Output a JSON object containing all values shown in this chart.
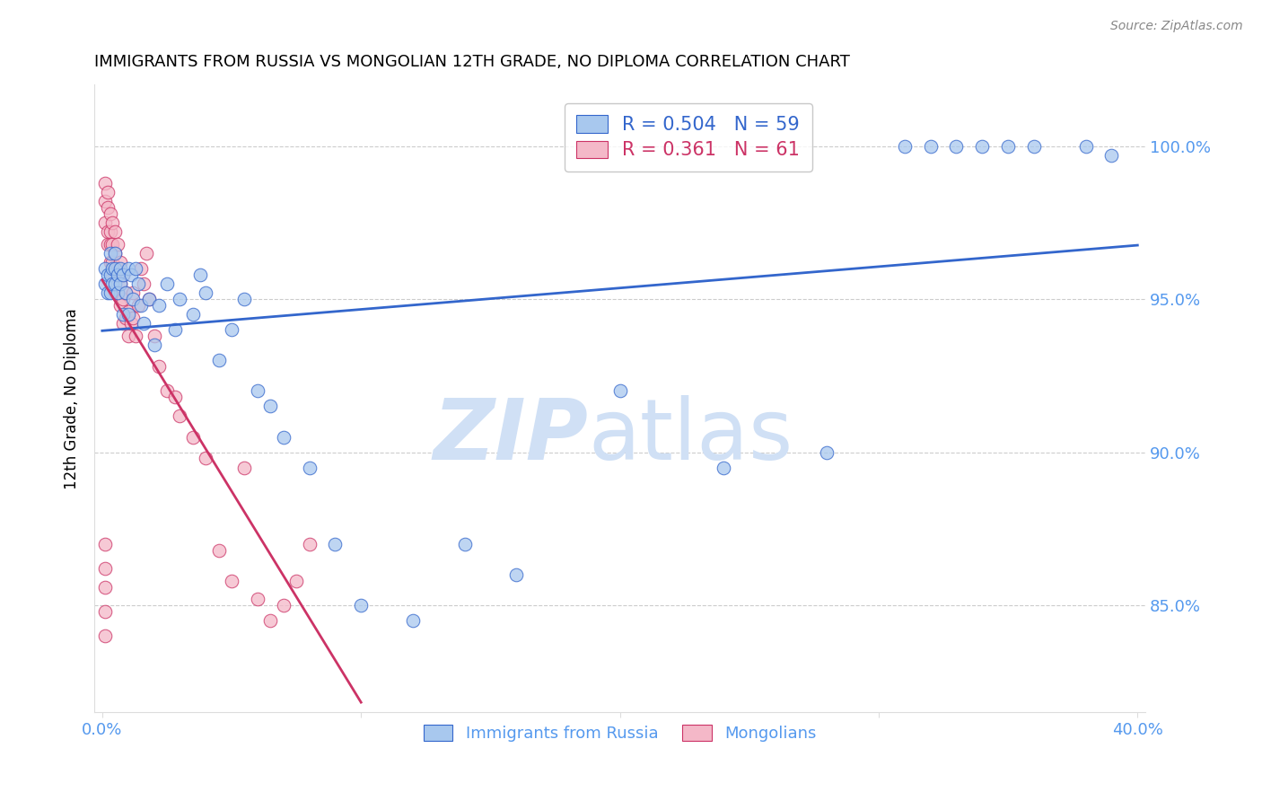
{
  "title": "IMMIGRANTS FROM RUSSIA VS MONGOLIAN 12TH GRADE, NO DIPLOMA CORRELATION CHART",
  "source": "Source: ZipAtlas.com",
  "ylabel": "12th Grade, No Diploma",
  "legend_blue_r": "R = 0.504",
  "legend_blue_n": "N = 59",
  "legend_pink_r": "R = 0.361",
  "legend_pink_n": "N = 61",
  "blue_color": "#a8c8ee",
  "pink_color": "#f4b8c8",
  "blue_line_color": "#3366cc",
  "pink_line_color": "#cc3366",
  "axis_color": "#5599ee",
  "watermark_color": "#d0e0f5",
  "xlim": [
    0.0,
    0.4
  ],
  "ylim": [
    0.815,
    1.02
  ],
  "blue_scatter_x": [
    0.001,
    0.001,
    0.002,
    0.002,
    0.003,
    0.003,
    0.003,
    0.004,
    0.004,
    0.005,
    0.005,
    0.005,
    0.006,
    0.006,
    0.007,
    0.007,
    0.008,
    0.008,
    0.009,
    0.01,
    0.01,
    0.011,
    0.012,
    0.013,
    0.014,
    0.015,
    0.016,
    0.018,
    0.02,
    0.022,
    0.025,
    0.028,
    0.03,
    0.035,
    0.038,
    0.04,
    0.045,
    0.05,
    0.055,
    0.06,
    0.065,
    0.07,
    0.08,
    0.09,
    0.1,
    0.12,
    0.14,
    0.16,
    0.2,
    0.24,
    0.28,
    0.31,
    0.32,
    0.33,
    0.34,
    0.35,
    0.36,
    0.38,
    0.39
  ],
  "blue_scatter_y": [
    0.96,
    0.955,
    0.958,
    0.952,
    0.965,
    0.958,
    0.952,
    0.96,
    0.955,
    0.965,
    0.96,
    0.955,
    0.958,
    0.952,
    0.96,
    0.955,
    0.958,
    0.945,
    0.952,
    0.96,
    0.945,
    0.958,
    0.95,
    0.96,
    0.955,
    0.948,
    0.942,
    0.95,
    0.935,
    0.948,
    0.955,
    0.94,
    0.95,
    0.945,
    0.958,
    0.952,
    0.93,
    0.94,
    0.95,
    0.92,
    0.915,
    0.905,
    0.895,
    0.87,
    0.85,
    0.845,
    0.87,
    0.86,
    0.92,
    0.895,
    0.9,
    1.0,
    1.0,
    1.0,
    1.0,
    1.0,
    1.0,
    1.0,
    0.997
  ],
  "pink_scatter_x": [
    0.001,
    0.001,
    0.001,
    0.002,
    0.002,
    0.002,
    0.002,
    0.003,
    0.003,
    0.003,
    0.003,
    0.004,
    0.004,
    0.004,
    0.004,
    0.005,
    0.005,
    0.005,
    0.005,
    0.006,
    0.006,
    0.006,
    0.007,
    0.007,
    0.007,
    0.008,
    0.008,
    0.008,
    0.009,
    0.009,
    0.01,
    0.01,
    0.011,
    0.012,
    0.012,
    0.013,
    0.014,
    0.015,
    0.016,
    0.017,
    0.018,
    0.02,
    0.022,
    0.025,
    0.028,
    0.03,
    0.035,
    0.04,
    0.045,
    0.05,
    0.055,
    0.06,
    0.065,
    0.07,
    0.075,
    0.08,
    0.001,
    0.001,
    0.001,
    0.001,
    0.001
  ],
  "pink_scatter_y": [
    0.988,
    0.982,
    0.975,
    0.985,
    0.98,
    0.972,
    0.968,
    0.978,
    0.972,
    0.968,
    0.962,
    0.975,
    0.968,
    0.962,
    0.958,
    0.972,
    0.965,
    0.958,
    0.952,
    0.968,
    0.96,
    0.952,
    0.962,
    0.955,
    0.948,
    0.958,
    0.95,
    0.942,
    0.952,
    0.944,
    0.946,
    0.938,
    0.942,
    0.952,
    0.944,
    0.938,
    0.948,
    0.96,
    0.955,
    0.965,
    0.95,
    0.938,
    0.928,
    0.92,
    0.918,
    0.912,
    0.905,
    0.898,
    0.868,
    0.858,
    0.895,
    0.852,
    0.845,
    0.85,
    0.858,
    0.87,
    0.87,
    0.862,
    0.856,
    0.848,
    0.84
  ]
}
